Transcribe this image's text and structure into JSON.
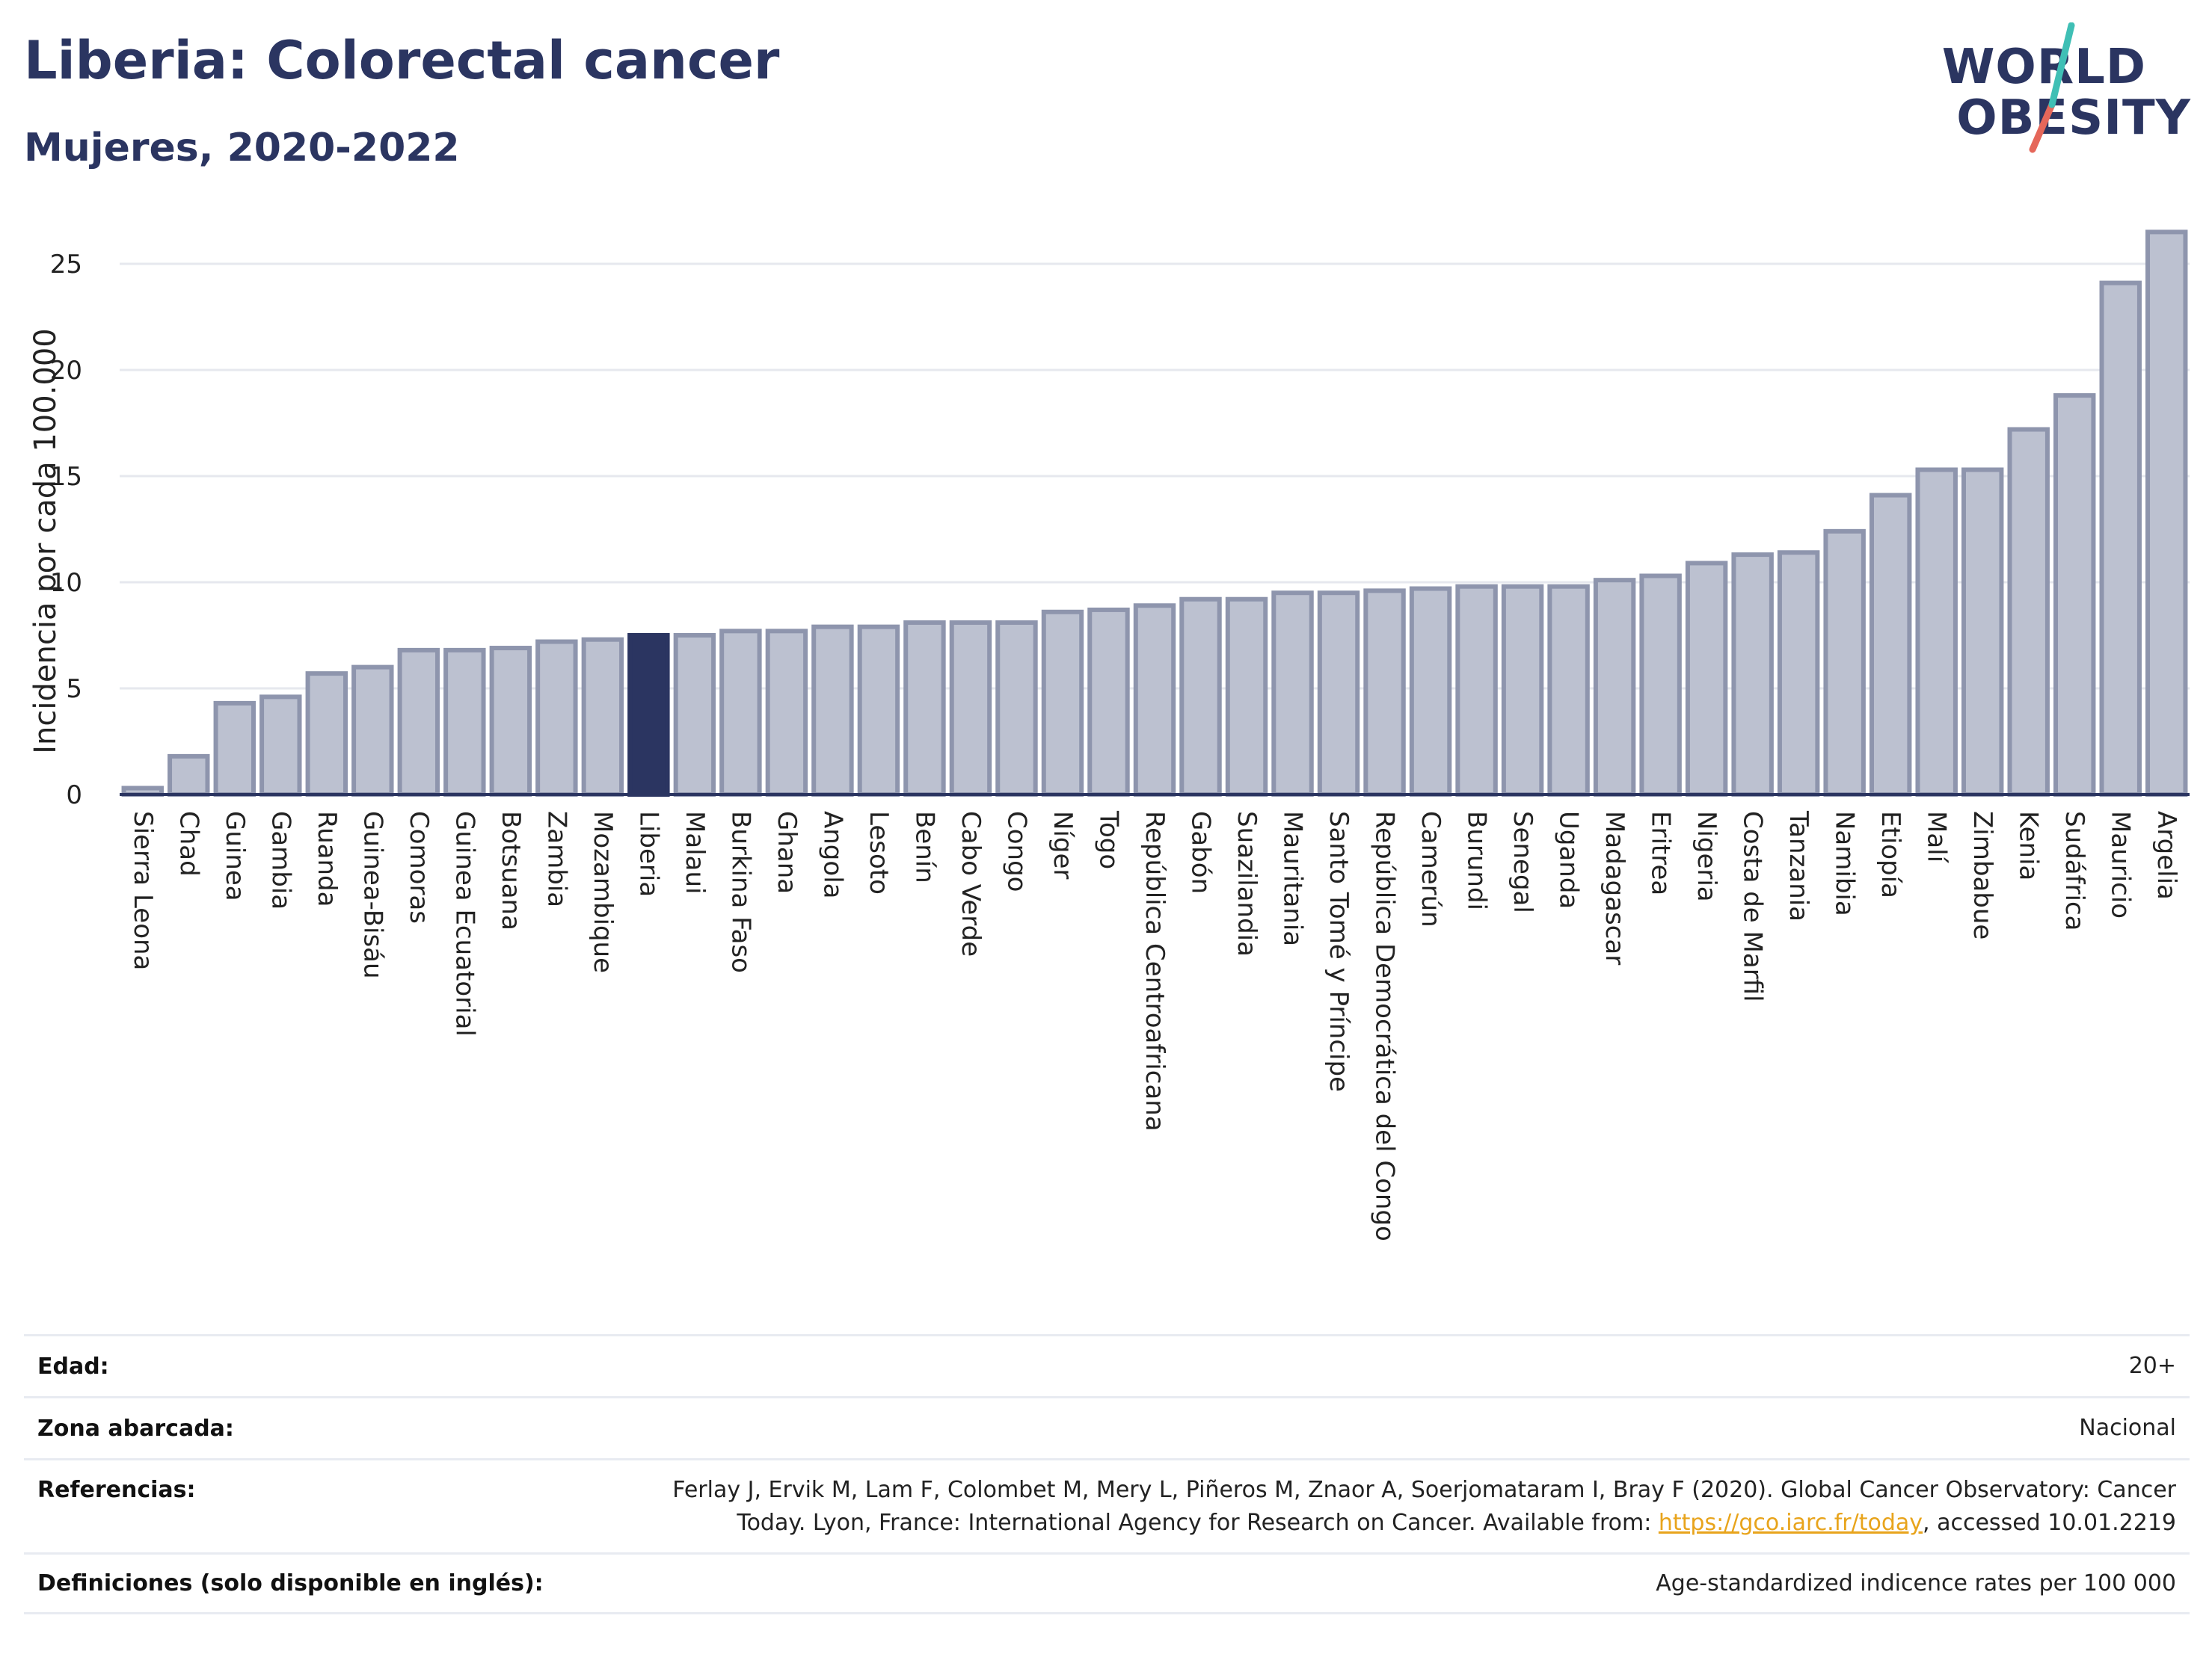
{
  "header": {
    "title": "Liberia: Colorectal cancer",
    "subtitle": "Mujeres, 2020-2022"
  },
  "logo": {
    "line1": "WORLD",
    "line2": "OBESITY",
    "colors": {
      "text": "#2b3561",
      "slash_top": "#3fbfb5",
      "slash_bottom": "#e5675a"
    }
  },
  "colors": {
    "bar_fill": "#bcc1d0",
    "bar_stroke": "#8e95ad",
    "highlight_fill": "#2b3561",
    "grid": "#e6e8ee",
    "axis_text": "#222222"
  },
  "chart_data": {
    "type": "bar",
    "ylabel": "Incidencia por cada 100.000",
    "xlabel": "",
    "ylim": [
      0,
      27
    ],
    "yticks": [
      0,
      5,
      10,
      15,
      20,
      25
    ],
    "grid": true,
    "highlight": "Liberia",
    "categories": [
      "Sierra Leona",
      "Chad",
      "Guinea",
      "Gambia",
      "Ruanda",
      "Guinea-Bisáu",
      "Comoras",
      "Guinea Ecuatorial",
      "Botsuana",
      "Zambia",
      "Mozambique",
      "Liberia",
      "Malaui",
      "Burkina Faso",
      "Ghana",
      "Angola",
      "Lesoto",
      "Benín",
      "Cabo Verde",
      "Congo",
      "Níger",
      "Togo",
      "República Centroafricana",
      "Gabón",
      "Suazilandia",
      "Mauritania",
      "Santo Tomé y Príncipe",
      "República Democrática del Congo",
      "Camerún",
      "Burundi",
      "Senegal",
      "Uganda",
      "Madagascar",
      "Eritrea",
      "Nigeria",
      "Costa de Marfil",
      "Tanzania",
      "Namibia",
      "Etiopía",
      "Malí",
      "Zimbabue",
      "Kenia",
      "Sudáfrica",
      "Mauricio",
      "Argelia"
    ],
    "values": [
      0.3,
      1.8,
      4.3,
      4.6,
      5.7,
      6.0,
      6.8,
      6.8,
      6.9,
      7.2,
      7.3,
      7.5,
      7.5,
      7.7,
      7.7,
      7.9,
      7.9,
      8.1,
      8.1,
      8.1,
      8.6,
      8.7,
      8.9,
      9.2,
      9.2,
      9.5,
      9.5,
      9.6,
      9.7,
      9.8,
      9.8,
      9.8,
      10.1,
      10.3,
      10.9,
      11.3,
      11.4,
      12.4,
      14.1,
      15.3,
      15.3,
      17.2,
      18.8,
      24.1,
      26.5
    ]
  },
  "meta": {
    "rows": [
      {
        "label": "Edad:",
        "value": "20+"
      },
      {
        "label": "Zona abarcada:",
        "value": "Nacional"
      },
      {
        "label": "Referencias:",
        "value_line1": "Ferlay J, Ervik M, Lam F, Colombet M, Mery L, Piñeros M, Znaor A, Soerjomataram I, Bray F (2020). Global Cancer Observatory: Cancer",
        "value_pre": "Today. Lyon, France: International Agency for Research on Cancer. Available from: ",
        "link": "https://gco.iarc.fr/today",
        "value_post": ", accessed 10.01.2219"
      },
      {
        "label": "Definiciones (solo disponible en inglés):",
        "value": "Age-standardized indicence rates per 100 000"
      }
    ]
  }
}
